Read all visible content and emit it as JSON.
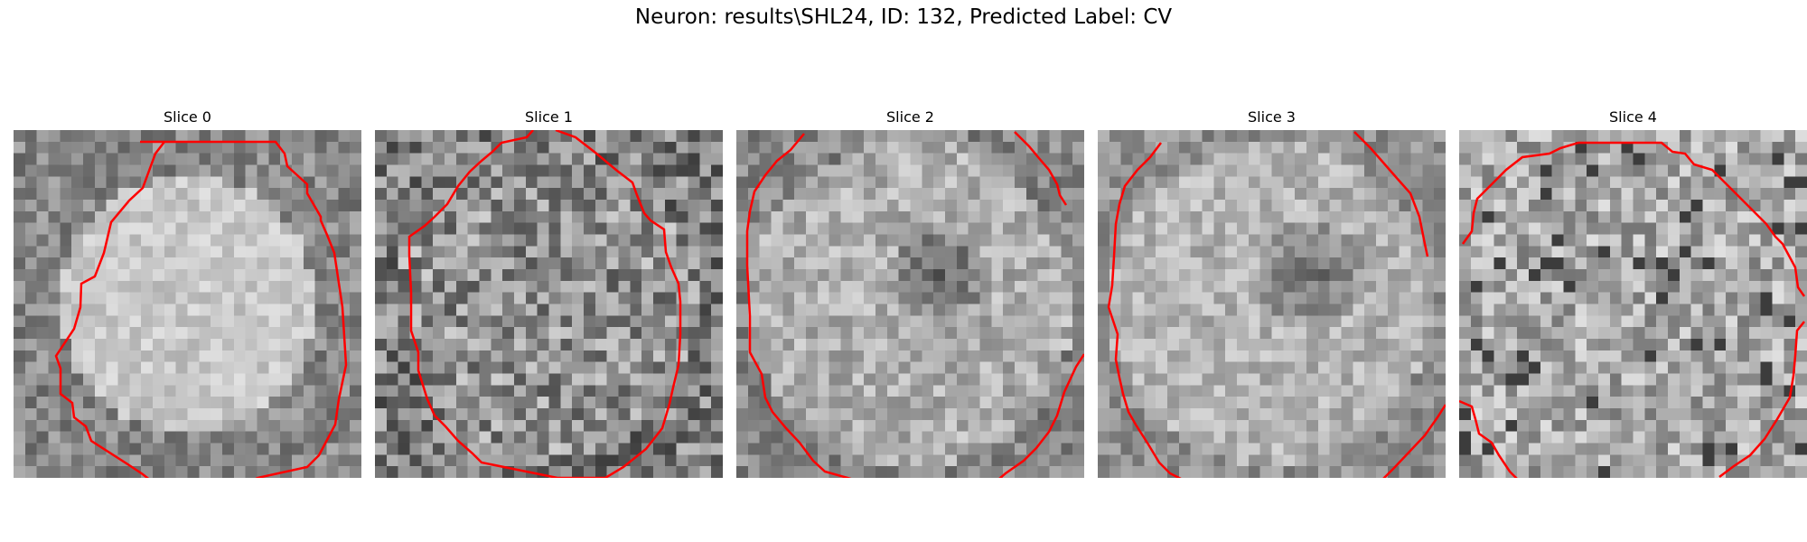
{
  "figure": {
    "title": "Neuron: results\\SHL24, ID: 132, Predicted Label: CV"
  },
  "panels": [
    {
      "title": "Slice 0",
      "seed": 11,
      "pattern": "bright-center"
    },
    {
      "title": "Slice 1",
      "seed": 23,
      "pattern": "textured"
    },
    {
      "title": "Slice 2",
      "seed": 37,
      "pattern": "dark-center"
    },
    {
      "title": "Slice 3",
      "seed": 41,
      "pattern": "dark-center-soft"
    },
    {
      "title": "Slice 4",
      "seed": 59,
      "pattern": "noisy"
    }
  ],
  "colors": {
    "contour": "#ff0000",
    "background": "#ffffff"
  }
}
